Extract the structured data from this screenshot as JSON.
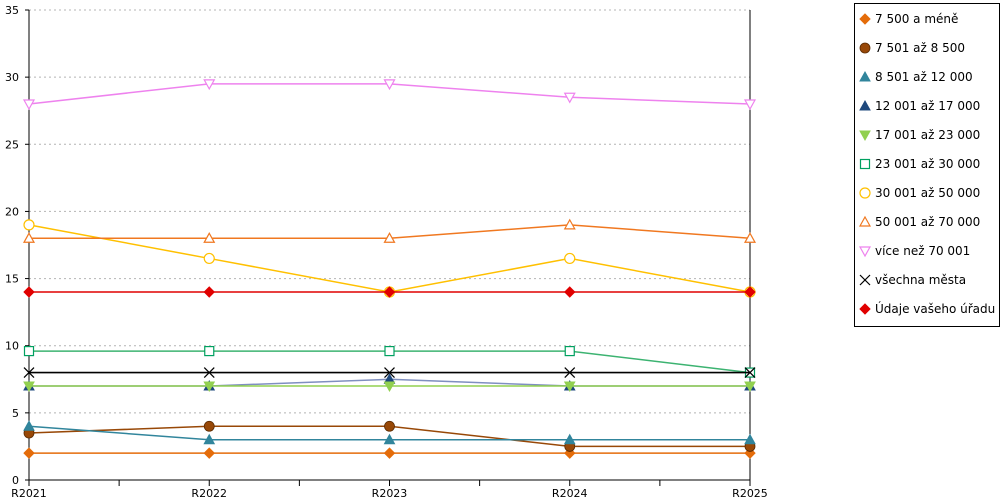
{
  "chart_data": {
    "type": "line",
    "categories": [
      "R2021",
      "R2022",
      "R2023",
      "R2024",
      "R2025"
    ],
    "ylim": [
      0,
      35
    ],
    "yticks": [
      0,
      5,
      10,
      15,
      20,
      25,
      30,
      35
    ],
    "grid": true,
    "legend_position": "right",
    "series": [
      {
        "name": "7 500 a méně",
        "color": "#E46C0A",
        "marker": "diamond",
        "values": [
          2,
          2,
          2,
          2,
          2
        ]
      },
      {
        "name": "7 501 až 8 500",
        "color": "#984807",
        "marker": "circle",
        "values": [
          3.5,
          4,
          4,
          2.5,
          2.5
        ]
      },
      {
        "name": "8 501 až 12 000",
        "color": "#31859C",
        "marker": "triangle",
        "values": [
          4,
          3,
          3,
          3,
          3
        ]
      },
      {
        "name": "12 001 až 17 000",
        "color": "#1F497D",
        "lineColor": "#7F8FC0",
        "marker": "triangle",
        "values": [
          7,
          7,
          7.5,
          7,
          7
        ]
      },
      {
        "name": "17 001 až 23 000",
        "color": "#92D050",
        "marker": "triangle-down",
        "values": [
          7,
          7,
          7,
          7,
          7
        ]
      },
      {
        "name": "23 001 až 30 000",
        "color": "#00A060",
        "lineColor": "#3CB371",
        "marker": "square-open",
        "values": [
          9.6,
          9.6,
          9.6,
          9.6,
          8
        ]
      },
      {
        "name": "30 001 až 50 000",
        "color": "#FFC000",
        "marker": "circle-open",
        "values": [
          19,
          16.5,
          14,
          16.5,
          14
        ]
      },
      {
        "name": "50 001 až 70 000",
        "color": "#F07820",
        "marker": "triangle-open",
        "values": [
          18,
          18,
          18,
          19,
          18
        ]
      },
      {
        "name": "více než 70 001",
        "color": "#EE82EE",
        "marker": "triangle-down-open",
        "values": [
          28,
          29.5,
          29.5,
          28.5,
          28
        ]
      },
      {
        "name": "všechna města",
        "color": "#000000",
        "marker": "x",
        "values": [
          8,
          8,
          8,
          8,
          8
        ]
      },
      {
        "name": "Údaje vašeho úřadu",
        "color": "#E00000",
        "marker": "diamond",
        "values": [
          14,
          14,
          14,
          14,
          14
        ]
      }
    ]
  }
}
